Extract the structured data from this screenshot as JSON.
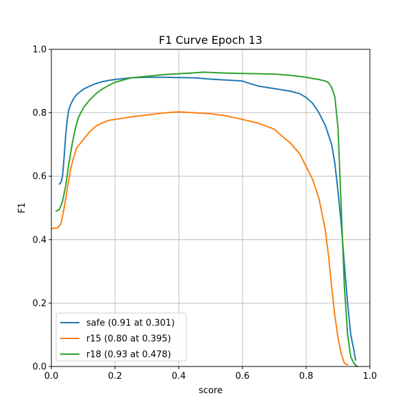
{
  "chart_data": {
    "type": "line",
    "title": "F1 Curve Epoch 13",
    "xlabel": "score",
    "ylabel": "F1",
    "xlim": [
      0,
      1
    ],
    "ylim": [
      0,
      1
    ],
    "xticks": [
      0.0,
      0.2,
      0.4,
      0.6,
      0.8,
      1.0
    ],
    "yticks": [
      0.0,
      0.2,
      0.4,
      0.6,
      0.8,
      1.0
    ],
    "xtick_labels": [
      "0.0",
      "0.2",
      "0.4",
      "0.6",
      "0.8",
      "1.0"
    ],
    "ytick_labels": [
      "0.0",
      "0.2",
      "0.4",
      "0.6",
      "0.8",
      "1.0"
    ],
    "grid": true,
    "legend_position": "bottom-left",
    "series": [
      {
        "name": "safe (0.91 at 0.301)",
        "color": "#1f77b4",
        "points": [
          [
            0.025,
            0.575
          ],
          [
            0.03,
            0.58
          ],
          [
            0.035,
            0.6
          ],
          [
            0.04,
            0.66
          ],
          [
            0.045,
            0.73
          ],
          [
            0.05,
            0.78
          ],
          [
            0.055,
            0.81
          ],
          [
            0.06,
            0.825
          ],
          [
            0.07,
            0.845
          ],
          [
            0.08,
            0.858
          ],
          [
            0.09,
            0.866
          ],
          [
            0.1,
            0.874
          ],
          [
            0.12,
            0.884
          ],
          [
            0.14,
            0.892
          ],
          [
            0.16,
            0.898
          ],
          [
            0.18,
            0.902
          ],
          [
            0.2,
            0.905
          ],
          [
            0.25,
            0.91
          ],
          [
            0.3,
            0.912
          ],
          [
            0.35,
            0.912
          ],
          [
            0.4,
            0.911
          ],
          [
            0.45,
            0.91
          ],
          [
            0.5,
            0.906
          ],
          [
            0.55,
            0.903
          ],
          [
            0.6,
            0.9
          ],
          [
            0.62,
            0.893
          ],
          [
            0.65,
            0.884
          ],
          [
            0.7,
            0.876
          ],
          [
            0.75,
            0.868
          ],
          [
            0.78,
            0.86
          ],
          [
            0.8,
            0.848
          ],
          [
            0.82,
            0.83
          ],
          [
            0.84,
            0.8
          ],
          [
            0.86,
            0.76
          ],
          [
            0.87,
            0.73
          ],
          [
            0.88,
            0.7
          ],
          [
            0.89,
            0.64
          ],
          [
            0.9,
            0.55
          ],
          [
            0.91,
            0.45
          ],
          [
            0.92,
            0.32
          ],
          [
            0.93,
            0.2
          ],
          [
            0.94,
            0.1
          ],
          [
            0.95,
            0.05
          ],
          [
            0.955,
            0.02
          ]
        ]
      },
      {
        "name": "r15 (0.80 at 0.395)",
        "color": "#ff7f0e",
        "points": [
          [
            0.0,
            0.435
          ],
          [
            0.02,
            0.437
          ],
          [
            0.03,
            0.45
          ],
          [
            0.04,
            0.5
          ],
          [
            0.05,
            0.56
          ],
          [
            0.06,
            0.62
          ],
          [
            0.07,
            0.66
          ],
          [
            0.08,
            0.69
          ],
          [
            0.1,
            0.715
          ],
          [
            0.12,
            0.74
          ],
          [
            0.14,
            0.758
          ],
          [
            0.16,
            0.768
          ],
          [
            0.18,
            0.776
          ],
          [
            0.2,
            0.779
          ],
          [
            0.25,
            0.787
          ],
          [
            0.3,
            0.793
          ],
          [
            0.35,
            0.799
          ],
          [
            0.4,
            0.803
          ],
          [
            0.45,
            0.8
          ],
          [
            0.5,
            0.797
          ],
          [
            0.55,
            0.79
          ],
          [
            0.6,
            0.779
          ],
          [
            0.65,
            0.767
          ],
          [
            0.7,
            0.748
          ],
          [
            0.72,
            0.73
          ],
          [
            0.75,
            0.705
          ],
          [
            0.78,
            0.67
          ],
          [
            0.8,
            0.63
          ],
          [
            0.82,
            0.59
          ],
          [
            0.84,
            0.53
          ],
          [
            0.86,
            0.43
          ],
          [
            0.87,
            0.35
          ],
          [
            0.88,
            0.25
          ],
          [
            0.89,
            0.16
          ],
          [
            0.9,
            0.09
          ],
          [
            0.91,
            0.04
          ],
          [
            0.92,
            0.01
          ],
          [
            0.93,
            0.005
          ]
        ]
      },
      {
        "name": "r18 (0.93 at 0.478)",
        "color": "#2ca02c",
        "points": [
          [
            0.015,
            0.49
          ],
          [
            0.025,
            0.495
          ],
          [
            0.035,
            0.52
          ],
          [
            0.045,
            0.57
          ],
          [
            0.055,
            0.64
          ],
          [
            0.065,
            0.7
          ],
          [
            0.075,
            0.75
          ],
          [
            0.085,
            0.785
          ],
          [
            0.1,
            0.815
          ],
          [
            0.12,
            0.84
          ],
          [
            0.14,
            0.86
          ],
          [
            0.16,
            0.875
          ],
          [
            0.18,
            0.886
          ],
          [
            0.2,
            0.896
          ],
          [
            0.25,
            0.91
          ],
          [
            0.3,
            0.915
          ],
          [
            0.35,
            0.92
          ],
          [
            0.4,
            0.923
          ],
          [
            0.45,
            0.926
          ],
          [
            0.478,
            0.928
          ],
          [
            0.5,
            0.927
          ],
          [
            0.55,
            0.925
          ],
          [
            0.6,
            0.924
          ],
          [
            0.65,
            0.923
          ],
          [
            0.7,
            0.922
          ],
          [
            0.75,
            0.918
          ],
          [
            0.8,
            0.912
          ],
          [
            0.82,
            0.908
          ],
          [
            0.84,
            0.905
          ],
          [
            0.86,
            0.9
          ],
          [
            0.87,
            0.895
          ],
          [
            0.88,
            0.88
          ],
          [
            0.89,
            0.85
          ],
          [
            0.9,
            0.75
          ],
          [
            0.91,
            0.5
          ],
          [
            0.92,
            0.25
          ],
          [
            0.93,
            0.1
          ],
          [
            0.94,
            0.03
          ],
          [
            0.95,
            0.01
          ],
          [
            0.96,
            0.0
          ]
        ]
      }
    ]
  }
}
